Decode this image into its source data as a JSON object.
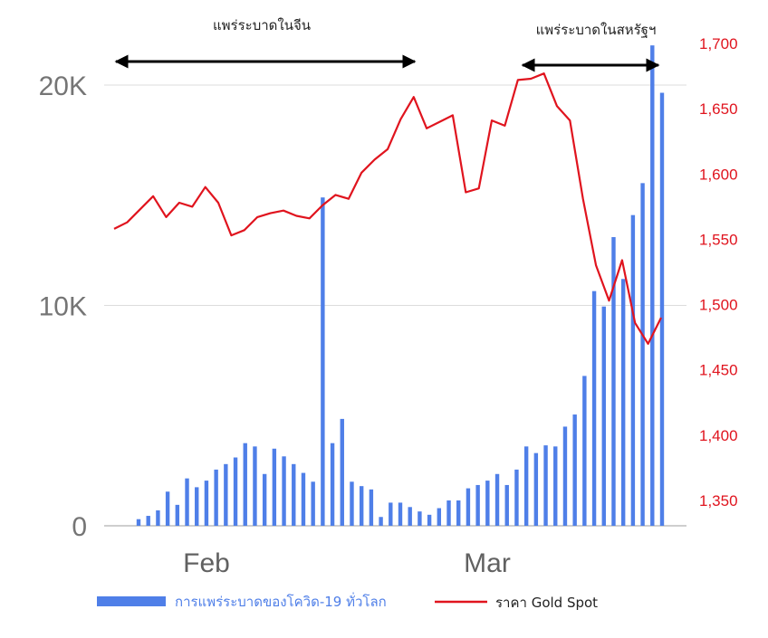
{
  "chart_data": {
    "type": "bar+line",
    "x_axis": {
      "tick_labels": [
        "Feb",
        "Mar"
      ]
    },
    "left_axis": {
      "ylim": [
        0,
        22000
      ],
      "tick_labels": [
        "0",
        "10K",
        "20K"
      ],
      "ticks": [
        0,
        10000,
        20000
      ],
      "grid": true
    },
    "right_axis": {
      "ylim": [
        1330,
        1710
      ],
      "ticks": [
        1350,
        1400,
        1450,
        1500,
        1550,
        1600,
        1650,
        1700
      ],
      "tick_labels": [
        "1,350",
        "1,400",
        "1,450",
        "1,500",
        "1,550",
        "1,600",
        "1,650",
        "1,700"
      ],
      "color": "#e0141e"
    },
    "series": [
      {
        "name": "การแพร่ระบาดของโควิด-19 ทั่วโลก",
        "type": "bar",
        "axis": "left",
        "color": "#4f7fe8",
        "values": [
          300,
          450,
          700,
          1550,
          950,
          2150,
          1750,
          2050,
          2550,
          2800,
          3100,
          3750,
          3600,
          2350,
          3500,
          3150,
          2800,
          2400,
          2000,
          14900,
          3750,
          4850,
          2000,
          1800,
          1650,
          400,
          1050,
          1050,
          850,
          650,
          500,
          800,
          1150,
          1150,
          1700,
          1850,
          2050,
          2350,
          1850,
          2550,
          3600,
          3300,
          3650,
          3600,
          4500,
          5050,
          6800,
          10650,
          9950,
          13100,
          11200,
          14100,
          15550,
          21800,
          19650
        ]
      },
      {
        "name": "ราคา Gold Spot",
        "type": "line",
        "axis": "right",
        "color": "#e0141e",
        "values": [
          1558,
          1563,
          1573,
          1583,
          1567,
          1578,
          1575,
          1590,
          1578,
          1553,
          1557,
          1567,
          1570,
          1572,
          1568,
          1566,
          1576,
          1584,
          1581,
          1601,
          1611,
          1619,
          1642,
          1659,
          1635,
          1640,
          1645,
          1586,
          1589,
          1641,
          1637,
          1672,
          1673,
          1677,
          1652,
          1641,
          1581,
          1530,
          1503,
          1534,
          1486,
          1470,
          1490
        ]
      }
    ],
    "annotations": [
      {
        "text": "แพร่ระบาดในจีน"
      },
      {
        "text": "แพร่ระบาดในสหรัฐฯ"
      }
    ],
    "legend": {
      "placement": "bottom"
    }
  }
}
